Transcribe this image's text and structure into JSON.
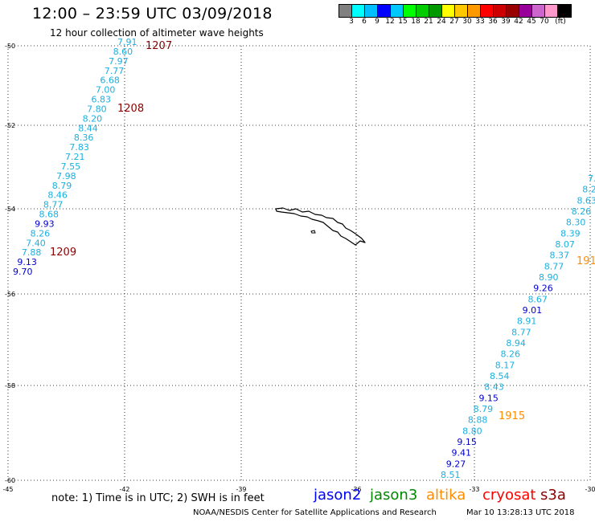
{
  "title": "12:00 – 23:59 UTC 03/09/2018",
  "subtitle": "12 hour collection of altimeter wave heights",
  "colorbar": {
    "colors": [
      "#808080",
      "#00ffff",
      "#00bfff",
      "#0000ff",
      "#00c8ff",
      "#00ff00",
      "#00cc00",
      "#009900",
      "#ffff00",
      "#ffc800",
      "#ff9900",
      "#ff0000",
      "#cc0000",
      "#990000",
      "#990099",
      "#cc66cc",
      "#ff99cc",
      "#000000"
    ],
    "labels": [
      "3",
      "6",
      "9",
      "12",
      "15",
      "18",
      "21",
      "24",
      "27",
      "30",
      "33",
      "36",
      "39",
      "42",
      "45",
      "70",
      "(ft)"
    ]
  },
  "axes": {
    "lat_labels": [
      "-50",
      "-52",
      "-54",
      "-56",
      "-58",
      "-60"
    ],
    "lon_labels": [
      "-45",
      "-42",
      "-39",
      "-36",
      "-33",
      "-30"
    ]
  },
  "tracks": [
    {
      "name": "track-west",
      "values": [
        "7.91",
        "8.60",
        "7.97",
        "7.77",
        "6.68",
        "7.00",
        "6.83",
        "7.80",
        "8.20",
        "8.44",
        "8.36",
        "7.83",
        "7.21",
        "7.55",
        "7.98",
        "8.79",
        "8.46",
        "8.77",
        "8.68",
        "9.93",
        "8.26",
        "7.40",
        "7.88",
        "9.13",
        "9.70"
      ],
      "colors": [
        "#1ab0e0",
        "#1ab0e0",
        "#1ab0e0",
        "#1ab0e0",
        "#1ab0e0",
        "#1ab0e0",
        "#1ab0e0",
        "#1ab0e0",
        "#1ab0e0",
        "#1ab0e0",
        "#1ab0e0",
        "#1ab0e0",
        "#1ab0e0",
        "#1ab0e0",
        "#1ab0e0",
        "#1ab0e0",
        "#1ab0e0",
        "#1ab0e0",
        "#1ab0e0",
        "#0000cc",
        "#1ab0e0",
        "#1ab0e0",
        "#1ab0e0",
        "#0000cc",
        "#0000cc"
      ]
    },
    {
      "name": "track-east",
      "values": [
        "7.",
        "8.2",
        "8.63",
        "8.26",
        "8.30",
        "8.39",
        "8.07",
        "8.37",
        "8.77",
        "8.90",
        "9.26",
        "8.67",
        "9.01",
        "8.91",
        "8.77",
        "8.94",
        "8.26",
        "8.17",
        "8.54",
        "8.43",
        "9.15",
        "8.79",
        "8.88",
        "8.80",
        "9.15",
        "9.41",
        "9.27",
        "8.51"
      ],
      "colors": [
        "#1ab0e0",
        "#1ab0e0",
        "#1ab0e0",
        "#1ab0e0",
        "#1ab0e0",
        "#1ab0e0",
        "#1ab0e0",
        "#1ab0e0",
        "#1ab0e0",
        "#1ab0e0",
        "#0000cc",
        "#1ab0e0",
        "#0000cc",
        "#1ab0e0",
        "#1ab0e0",
        "#1ab0e0",
        "#1ab0e0",
        "#1ab0e0",
        "#1ab0e0",
        "#1ab0e0",
        "#0000cc",
        "#1ab0e0",
        "#1ab0e0",
        "#1ab0e0",
        "#0000cc",
        "#0000cc",
        "#0000cc",
        "#1ab0e0"
      ]
    }
  ],
  "times": [
    {
      "text": "1207",
      "color": "#8b0000"
    },
    {
      "text": "1208",
      "color": "#8b0000"
    },
    {
      "text": "1209",
      "color": "#8b0000"
    },
    {
      "text": "191",
      "color": "#ff8c00"
    },
    {
      "text": "1915",
      "color": "#ff8c00"
    }
  ],
  "note": "note: 1) Time is in UTC; 2) SWH is in feet",
  "satellites": [
    {
      "name": "jason2",
      "color": "#0000ff"
    },
    {
      "name": "jason3",
      "color": "#008800"
    },
    {
      "name": "altika",
      "color": "#ff8c00"
    },
    {
      "name": "cryosat",
      "color": "#ff0000"
    },
    {
      "name": "s3a",
      "color": "#8b0000"
    }
  ],
  "credit": "NOAA/NESDIS Center for Satellite Applications and Research",
  "timestamp": "Mar 10 13:28:13 UTC 2018"
}
